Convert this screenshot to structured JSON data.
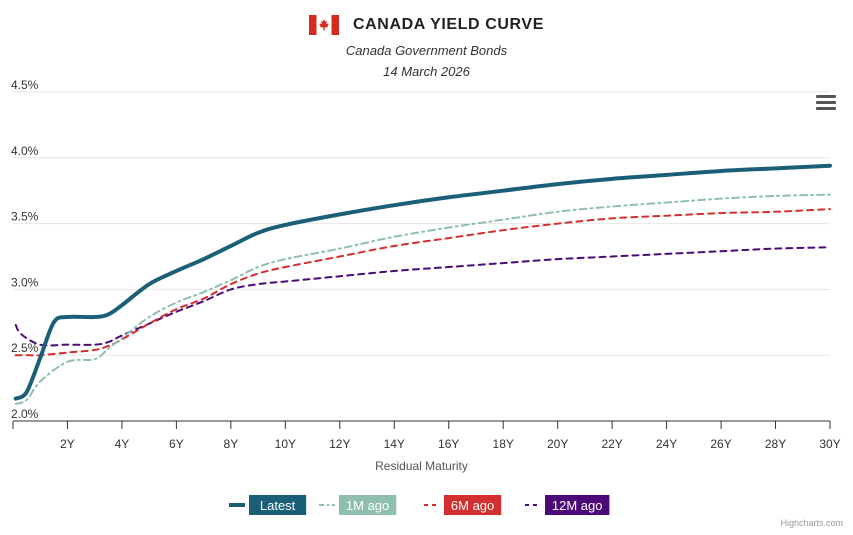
{
  "header": {
    "title": "CANADA YIELD CURVE",
    "subtitle": "Canada Government Bonds",
    "date": "14 March 2026"
  },
  "credits": "Highcharts.com",
  "colors": {
    "latest": "#1b5e78",
    "m1": "#8fbfae",
    "m6": "#d32f2f",
    "m12": "#4b0a78",
    "grid": "#e6e6e6",
    "axis": "#333333",
    "flag_red": "#d52b1e"
  },
  "icons": {
    "menu": "hamburger-menu-icon",
    "flag": "canada-flag-icon"
  },
  "chart_data": {
    "type": "line",
    "xlabel": "Residual Maturity",
    "ylabel": "",
    "xlim": [
      0,
      30
    ],
    "ylim": [
      2.0,
      4.5
    ],
    "x_ticks": [
      2,
      4,
      6,
      8,
      10,
      12,
      14,
      16,
      18,
      20,
      22,
      24,
      26,
      28,
      30
    ],
    "x_tick_labels": [
      "2Y",
      "4Y",
      "6Y",
      "8Y",
      "10Y",
      "12Y",
      "14Y",
      "16Y",
      "18Y",
      "20Y",
      "22Y",
      "24Y",
      "26Y",
      "28Y",
      "30Y"
    ],
    "y_ticks": [
      2.0,
      2.5,
      3.0,
      3.5,
      4.0,
      4.5
    ],
    "y_tick_labels": [
      "2.0%",
      "2.5%",
      "3.0%",
      "3.5%",
      "4.0%",
      "4.5%"
    ],
    "legend_position": "bottom-center",
    "series": [
      {
        "name": "Latest",
        "key": "latest",
        "dash": "solid",
        "points": [
          [
            0.1,
            2.17
          ],
          [
            0.5,
            2.22
          ],
          [
            1,
            2.48
          ],
          [
            1.5,
            2.75
          ],
          [
            2,
            2.79
          ],
          [
            3,
            2.79
          ],
          [
            3.5,
            2.81
          ],
          [
            4,
            2.88
          ],
          [
            5,
            3.04
          ],
          [
            6,
            3.14
          ],
          [
            7,
            3.23
          ],
          [
            8,
            3.33
          ],
          [
            9,
            3.43
          ],
          [
            10,
            3.49
          ],
          [
            12,
            3.57
          ],
          [
            14,
            3.64
          ],
          [
            16,
            3.7
          ],
          [
            18,
            3.75
          ],
          [
            20,
            3.8
          ],
          [
            22,
            3.84
          ],
          [
            24,
            3.87
          ],
          [
            26,
            3.9
          ],
          [
            28,
            3.92
          ],
          [
            30,
            3.94
          ]
        ]
      },
      {
        "name": "1M ago",
        "key": "m1",
        "dash": "dash-dot",
        "points": [
          [
            0.1,
            2.13
          ],
          [
            0.5,
            2.16
          ],
          [
            1,
            2.3
          ],
          [
            2,
            2.45
          ],
          [
            3,
            2.47
          ],
          [
            3.5,
            2.55
          ],
          [
            4,
            2.63
          ],
          [
            5,
            2.79
          ],
          [
            6,
            2.9
          ],
          [
            7,
            2.98
          ],
          [
            8,
            3.07
          ],
          [
            9,
            3.17
          ],
          [
            10,
            3.23
          ],
          [
            12,
            3.31
          ],
          [
            14,
            3.4
          ],
          [
            16,
            3.47
          ],
          [
            18,
            3.53
          ],
          [
            20,
            3.59
          ],
          [
            22,
            3.63
          ],
          [
            24,
            3.66
          ],
          [
            26,
            3.69
          ],
          [
            28,
            3.71
          ],
          [
            30,
            3.72
          ]
        ]
      },
      {
        "name": "6M ago",
        "key": "m6",
        "dash": "dash",
        "points": [
          [
            0.1,
            2.5
          ],
          [
            0.5,
            2.5
          ],
          [
            1,
            2.5
          ],
          [
            2,
            2.52
          ],
          [
            3,
            2.54
          ],
          [
            3.5,
            2.57
          ],
          [
            4,
            2.62
          ],
          [
            5,
            2.74
          ],
          [
            6,
            2.85
          ],
          [
            7,
            2.93
          ],
          [
            8,
            3.04
          ],
          [
            9,
            3.12
          ],
          [
            10,
            3.17
          ],
          [
            12,
            3.25
          ],
          [
            14,
            3.33
          ],
          [
            16,
            3.39
          ],
          [
            18,
            3.45
          ],
          [
            20,
            3.5
          ],
          [
            22,
            3.54
          ],
          [
            24,
            3.56
          ],
          [
            26,
            3.58
          ],
          [
            28,
            3.59
          ],
          [
            30,
            3.61
          ]
        ]
      },
      {
        "name": "12M ago",
        "key": "m12",
        "dash": "dash",
        "points": [
          [
            0.1,
            2.73
          ],
          [
            0.3,
            2.66
          ],
          [
            1,
            2.58
          ],
          [
            2,
            2.58
          ],
          [
            3,
            2.58
          ],
          [
            3.5,
            2.6
          ],
          [
            4,
            2.65
          ],
          [
            5,
            2.74
          ],
          [
            6,
            2.83
          ],
          [
            7,
            2.91
          ],
          [
            8,
            3.0
          ],
          [
            9,
            3.04
          ],
          [
            10,
            3.06
          ],
          [
            12,
            3.1
          ],
          [
            14,
            3.14
          ],
          [
            16,
            3.17
          ],
          [
            18,
            3.2
          ],
          [
            20,
            3.23
          ],
          [
            22,
            3.25
          ],
          [
            24,
            3.27
          ],
          [
            26,
            3.29
          ],
          [
            28,
            3.31
          ],
          [
            30,
            3.32
          ]
        ]
      }
    ]
  }
}
